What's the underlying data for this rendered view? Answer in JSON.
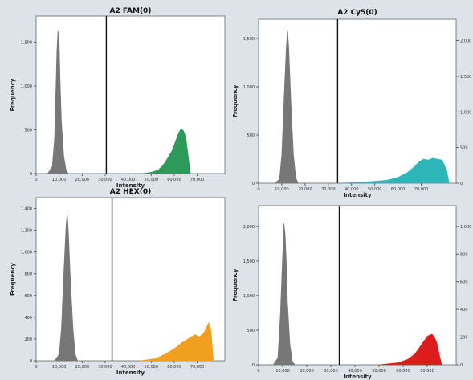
{
  "chart_data": [
    {
      "type": "area",
      "title": "A2 FAM(0)",
      "xlabel": "Intensity",
      "ylabel": "Frequency",
      "xlim": [
        0,
        82000
      ],
      "ylim": [
        0,
        1800
      ],
      "x_ticks": [
        0,
        10000,
        20000,
        30000,
        40000,
        50000,
        60000,
        70000
      ],
      "x_tick_labels": [
        "0",
        "10,000",
        "20,000",
        "30,000",
        "40,000",
        "50,000",
        "60,000",
        "70,000"
      ],
      "y_ticks": [
        0,
        500,
        1000,
        1500
      ],
      "y_tick_labels": [
        "0",
        "500",
        "1,000",
        "1,500"
      ],
      "threshold": 30500,
      "negative_color": "#777777",
      "positive_color": "#2e9a5a",
      "series": [
        {
          "x": [
            5000,
            7000,
            8000,
            8500,
            9000,
            9500,
            10000,
            10500,
            11000,
            12000,
            13000,
            14000
          ],
          "values": [
            0,
            80,
            400,
            900,
            1400,
            1640,
            1500,
            1000,
            600,
            200,
            40,
            0
          ]
        },
        {
          "x": [
            46000,
            50000,
            53000,
            55000,
            57000,
            59000,
            60000,
            61000,
            62000,
            63000,
            64000,
            65000,
            66000,
            67000
          ],
          "values": [
            0,
            15,
            40,
            90,
            170,
            260,
            330,
            400,
            470,
            510,
            490,
            420,
            220,
            0
          ]
        }
      ]
    },
    {
      "type": "area",
      "title": "A2 Cy5(0)",
      "xlabel": "Intensity",
      "ylabel": "Frequency",
      "xlim": [
        0,
        85000
      ],
      "ylim": [
        0,
        1700
      ],
      "x_ticks": [
        0,
        10000,
        20000,
        30000,
        40000,
        50000,
        60000,
        70000
      ],
      "x_tick_labels": [
        "0",
        "10,000",
        "20,000",
        "30,000",
        "40,000",
        "50,000",
        "60,000",
        "70,000"
      ],
      "y_ticks": [
        0,
        500,
        1000,
        1500
      ],
      "y_tick_labels": [
        "0",
        "500",
        "1,000",
        "1,500"
      ],
      "right_y_ticks": [
        0,
        500,
        1000,
        1500,
        2000
      ],
      "right_y_tick_labels": [
        "0",
        "500",
        "1,000",
        "1,500",
        "2,000"
      ],
      "threshold": 34000,
      "negative_color": "#777777",
      "positive_color": "#2cb6b8",
      "series": [
        {
          "x": [
            7000,
            9000,
            10000,
            11000,
            12000,
            12500,
            13000,
            14000,
            15000,
            16000,
            17000
          ],
          "values": [
            0,
            40,
            300,
            900,
            1450,
            1580,
            1400,
            800,
            300,
            60,
            0
          ]
        },
        {
          "x": [
            34000,
            45000,
            55000,
            60000,
            64000,
            67000,
            69000,
            71000,
            73000,
            75000,
            77000,
            79000,
            81000,
            82000
          ],
          "values": [
            0,
            10,
            30,
            60,
            110,
            170,
            220,
            250,
            240,
            260,
            250,
            240,
            130,
            0
          ]
        }
      ]
    },
    {
      "type": "area",
      "title": "A2 HEX(0)",
      "xlabel": "Intensity",
      "ylabel": "Frequency",
      "xlim": [
        0,
        82000
      ],
      "ylim": [
        0,
        1500
      ],
      "x_ticks": [
        0,
        10000,
        20000,
        30000,
        40000,
        50000,
        60000,
        70000
      ],
      "x_tick_labels": [
        "0",
        "10,000",
        "20,000",
        "30,000",
        "40,000",
        "50,000",
        "60,000",
        "70,000"
      ],
      "y_ticks": [
        0,
        200,
        400,
        600,
        800,
        1000,
        1200,
        1400
      ],
      "y_tick_labels": [
        "0",
        "200",
        "400",
        "600",
        "800",
        "1,000",
        "1,200",
        "1,400"
      ],
      "threshold": 33000,
      "negative_color": "#777777",
      "positive_color": "#f0a01e",
      "series": [
        {
          "x": [
            8000,
            10000,
            11000,
            12000,
            13000,
            13500,
            14000,
            15000,
            16000,
            17000,
            18000
          ],
          "values": [
            0,
            60,
            300,
            800,
            1250,
            1370,
            1200,
            700,
            300,
            60,
            0
          ]
        },
        {
          "x": [
            45000,
            52000,
            56000,
            60000,
            63000,
            66000,
            69000,
            71000,
            73000,
            75000,
            76000,
            77000
          ],
          "values": [
            0,
            20,
            60,
            110,
            160,
            200,
            240,
            220,
            260,
            350,
            280,
            0
          ]
        }
      ]
    },
    {
      "type": "area",
      "title": "",
      "xlabel": "Intensity",
      "ylabel": "Frequency",
      "xlim": [
        0,
        82000
      ],
      "ylim": [
        0,
        2300
      ],
      "x_ticks": [
        0,
        10000,
        20000,
        30000,
        40000,
        50000,
        60000,
        70000
      ],
      "x_tick_labels": [
        "0",
        "10,000",
        "20,000",
        "30,000",
        "40,000",
        "50,000",
        "60,000",
        "70,000"
      ],
      "y_ticks": [
        0,
        500,
        1000,
        1500,
        2000
      ],
      "y_tick_labels": [
        "0",
        "500",
        "1,000",
        "1,500",
        "2,000"
      ],
      "right_y_ticks": [
        0,
        200,
        400,
        600,
        800,
        1000
      ],
      "right_y_tick_labels": [
        "0",
        "200",
        "400",
        "600",
        "800",
        "1,000"
      ],
      "threshold": 33500,
      "negative_color": "#777777",
      "positive_color": "#dd1c1c",
      "series": [
        {
          "x": [
            6000,
            8000,
            9000,
            10000,
            10500,
            11000,
            11500,
            12000,
            13000,
            14000,
            15000
          ],
          "values": [
            0,
            100,
            700,
            1600,
            2050,
            1900,
            1500,
            900,
            300,
            50,
            0
          ]
        },
        {
          "x": [
            50000,
            58000,
            62000,
            65000,
            67000,
            69000,
            70000,
            71000,
            72000,
            73000,
            74000,
            75000,
            76000
          ],
          "values": [
            0,
            30,
            80,
            160,
            260,
            360,
            410,
            430,
            440,
            400,
            320,
            150,
            0
          ]
        }
      ]
    }
  ]
}
